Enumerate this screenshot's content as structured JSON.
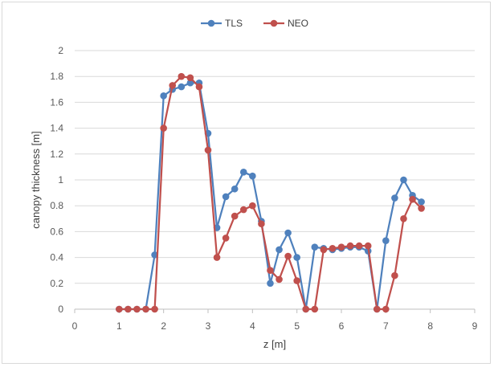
{
  "chart_data": {
    "type": "line",
    "xlabel": "z [m]",
    "ylabel": "canopy thickness [m]",
    "xlim": [
      0,
      9
    ],
    "ylim": [
      0,
      2
    ],
    "xticks": [
      "0",
      "1",
      "2",
      "3",
      "4",
      "5",
      "6",
      "7",
      "8",
      "9"
    ],
    "yticks": [
      "0",
      "0.2",
      "0.4",
      "0.6",
      "0.8",
      "1",
      "1.2",
      "1.4",
      "1.6",
      "1.8",
      "2"
    ],
    "grid": "horizontal",
    "legend": "top-center",
    "x": [
      1.0,
      1.2,
      1.4,
      1.6,
      1.8,
      2.0,
      2.2,
      2.4,
      2.6,
      2.8,
      3.0,
      3.2,
      3.4,
      3.6,
      3.8,
      4.0,
      4.2,
      4.4,
      4.6,
      4.8,
      5.0,
      5.2,
      5.4,
      5.6,
      5.8,
      6.0,
      6.2,
      6.4,
      6.6,
      6.8,
      7.0,
      7.2,
      7.4,
      7.6,
      7.8
    ],
    "series": [
      {
        "name": "TLS",
        "color": "#4f81bd",
        "values": [
          0,
          0,
          0,
          0,
          0.42,
          1.65,
          1.7,
          1.72,
          1.75,
          1.75,
          1.36,
          0.63,
          0.87,
          0.93,
          1.06,
          1.03,
          0.68,
          0.2,
          0.46,
          0.59,
          0.4,
          0,
          0.48,
          0.47,
          0.46,
          0.47,
          0.48,
          0.48,
          0.45,
          0,
          0.53,
          0.86,
          1.0,
          0.88,
          0.83
        ]
      },
      {
        "name": "NEO",
        "color": "#c0504d",
        "values": [
          0,
          0,
          0,
          0,
          0,
          1.4,
          1.73,
          1.8,
          1.79,
          1.72,
          1.23,
          0.4,
          0.55,
          0.72,
          0.77,
          0.8,
          0.66,
          0.3,
          0.23,
          0.41,
          0.22,
          0,
          0,
          0.46,
          0.47,
          0.48,
          0.49,
          0.49,
          0.49,
          0,
          0,
          0.26,
          0.7,
          0.85,
          0.78
        ]
      }
    ]
  }
}
